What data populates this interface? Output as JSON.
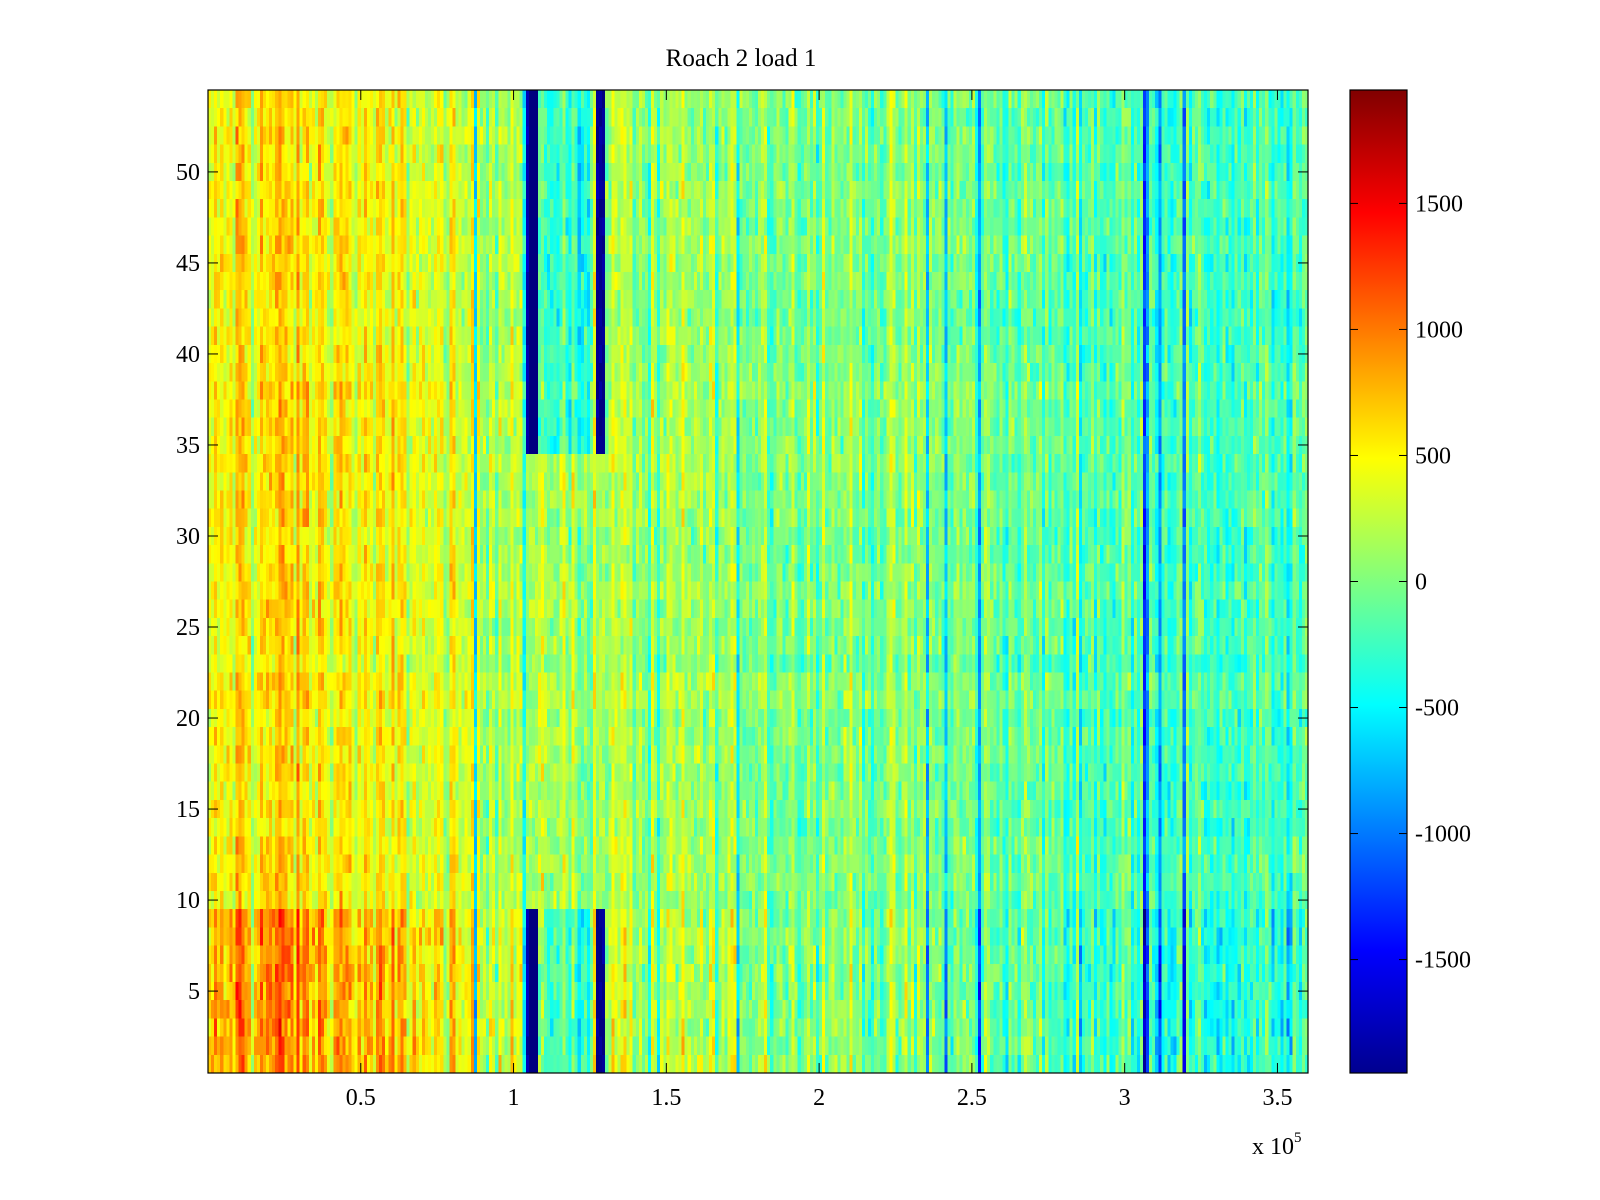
{
  "chart_data": {
    "type": "heatmap",
    "title": "Roach 2 load 1",
    "xlabel": "",
    "ylabel": "",
    "x_multiplier": "x 10",
    "x_multiplier_exponent": "5",
    "xlim": [
      0,
      360000
    ],
    "ylim": [
      0.5,
      54.5
    ],
    "rows": 54,
    "columns": 360,
    "x_ticks": [
      {
        "value": 50000,
        "label": "0.5"
      },
      {
        "value": 100000,
        "label": "1"
      },
      {
        "value": 150000,
        "label": "1.5"
      },
      {
        "value": 200000,
        "label": "2"
      },
      {
        "value": 250000,
        "label": "2.5"
      },
      {
        "value": 300000,
        "label": "3"
      },
      {
        "value": 350000,
        "label": "3.5"
      }
    ],
    "y_ticks": [
      {
        "value": 5,
        "label": "5"
      },
      {
        "value": 10,
        "label": "10"
      },
      {
        "value": 15,
        "label": "15"
      },
      {
        "value": 20,
        "label": "20"
      },
      {
        "value": 25,
        "label": "25"
      },
      {
        "value": 30,
        "label": "30"
      },
      {
        "value": 35,
        "label": "35"
      },
      {
        "value": 40,
        "label": "40"
      },
      {
        "value": 45,
        "label": "45"
      },
      {
        "value": 50,
        "label": "50"
      }
    ],
    "colorbar": {
      "colormap": "jet",
      "clim": [
        -1950,
        1950
      ],
      "ticks": [
        {
          "value": 1500,
          "label": "1500"
        },
        {
          "value": 1000,
          "label": "1000"
        },
        {
          "value": 500,
          "label": "500"
        },
        {
          "value": 0,
          "label": "0"
        },
        {
          "value": -500,
          "label": "-500"
        },
        {
          "value": -1000,
          "label": "-1000"
        },
        {
          "value": -1500,
          "label": "-1500"
        }
      ]
    },
    "value_trend": [
      {
        "x": 0,
        "value": 380
      },
      {
        "x": 15000,
        "value": 620
      },
      {
        "x": 50000,
        "value": 460
      },
      {
        "x": 100000,
        "value": 250
      },
      {
        "x": 150000,
        "value": 120
      },
      {
        "x": 200000,
        "value": 60
      },
      {
        "x": 250000,
        "value": -60
      },
      {
        "x": 300000,
        "value": -150
      },
      {
        "x": 360000,
        "value": -260
      }
    ],
    "dark_bands": [
      {
        "x_start": 104000,
        "x_end": 108000,
        "value": -1750
      },
      {
        "x_start": 127000,
        "x_end": 130000,
        "value": -1900
      }
    ],
    "grid": false
  }
}
